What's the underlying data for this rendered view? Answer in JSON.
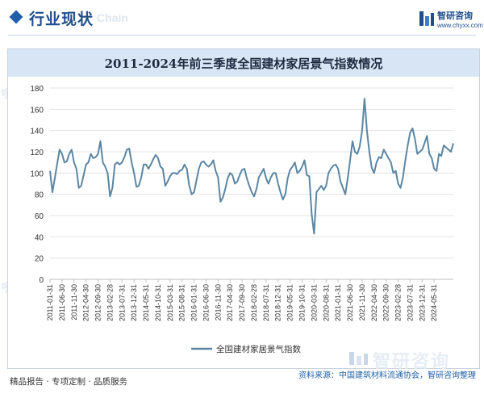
{
  "header": {
    "section_title": "行业现状",
    "section_title_en": "Chain",
    "brand_name": "智研咨询",
    "brand_site": "www.chyxx.com",
    "accent_color": "#1f4e8c"
  },
  "chart_data": {
    "type": "line",
    "title": "2011-2024年前三季度全国建材家居景气指数情况",
    "xlabel": "",
    "ylabel": "",
    "ylim": [
      0,
      180
    ],
    "yticks": [
      0,
      20,
      40,
      60,
      80,
      100,
      120,
      140,
      160,
      180
    ],
    "xtick_labels": [
      "2011-01-31",
      "2011-06-30",
      "2011-11-30",
      "2012-04-30",
      "2012-09-30",
      "2013-02-28",
      "2013-07-31",
      "2013-12-31",
      "2014-05-31",
      "2014-10-31",
      "2015-03-31",
      "2015-08-31",
      "2016-01-31",
      "2016-06-30",
      "2016-11-30",
      "2017-04-30",
      "2017-09-30",
      "2018-02-28",
      "2018-07-31",
      "2018-12-31",
      "2019-05-31",
      "2019-10-31",
      "2020-03-31",
      "2020-08-31",
      "2021-01-31",
      "2021-06-30",
      "2021-11-30",
      "2022-04-30",
      "2022-09-30",
      "2023-02-28",
      "2023-07-31",
      "2023-12-31",
      "2024-05-31"
    ],
    "grid": "horizontal",
    "legend_position": "bottom-left",
    "line_color": "#5b86a3",
    "series": [
      {
        "name": "全国建材家居景气指数",
        "values": [
          102,
          82,
          95,
          109,
          122,
          118,
          110,
          111,
          118,
          122,
          110,
          104,
          86,
          88,
          98,
          108,
          110,
          118,
          114,
          115,
          118,
          130,
          110,
          106,
          100,
          78,
          86,
          108,
          110,
          108,
          110,
          115,
          122,
          123,
          110,
          100,
          87,
          88,
          96,
          108,
          108,
          104,
          108,
          113,
          117,
          114,
          106,
          104,
          88,
          92,
          97,
          100,
          100,
          99,
          102,
          103,
          108,
          104,
          88,
          80,
          82,
          93,
          104,
          110,
          111,
          108,
          106,
          108,
          112,
          102,
          96,
          73,
          77,
          85,
          95,
          100,
          98,
          90,
          92,
          98,
          103,
          104,
          95,
          88,
          82,
          78,
          85,
          96,
          100,
          104,
          95,
          90,
          96,
          100,
          100,
          90,
          82,
          75,
          80,
          95,
          103,
          106,
          110,
          100,
          102,
          106,
          112,
          98,
          97,
          61,
          43,
          82,
          85,
          88,
          84,
          88,
          100,
          104,
          107,
          108,
          104,
          92,
          86,
          80,
          95,
          112,
          130,
          120,
          118,
          125,
          140,
          170,
          140,
          120,
          105,
          100,
          110,
          115,
          114,
          122,
          118,
          114,
          110,
          100,
          102,
          90,
          86,
          96,
          112,
          126,
          138,
          142,
          132,
          118,
          120,
          122,
          128,
          135,
          118,
          114,
          104,
          102,
          118,
          116,
          126,
          124,
          122,
          120,
          128
        ]
      }
    ]
  },
  "footer": {
    "left_text": "精品报告 · 专项定制 · 品质服务",
    "right_text": "资料来源：中国建筑材料流通协会，智研咨询整理",
    "watermark_text": "智研咨询"
  }
}
